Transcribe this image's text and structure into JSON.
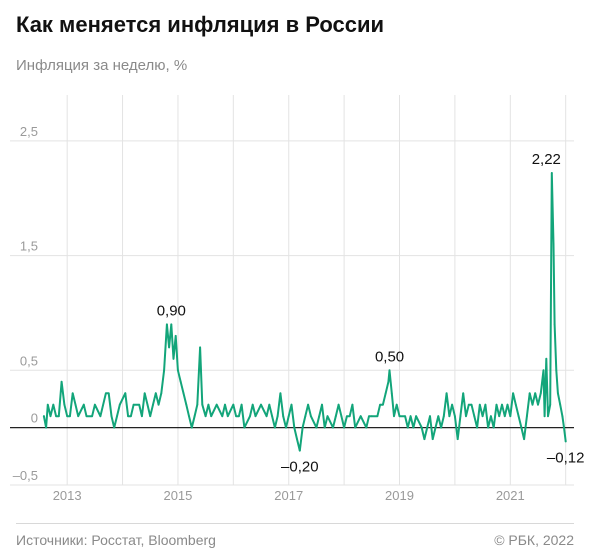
{
  "header": {
    "title": "Как меняется инфляция в России",
    "subtitle": "Инфляция за неделю, %"
  },
  "footer": {
    "source": "Источники: Росстат, Bloomberg",
    "copyright": "© РБК, 2022"
  },
  "colors": {
    "line": "#13a57a",
    "grid": "#e3e3e3",
    "axis": "#222222",
    "tick_text": "#9a9a9a"
  },
  "chart_data": {
    "type": "line",
    "title": "Как меняется инфляция в России",
    "ylabel": "Инфляция за неделю, %",
    "xlim": [
      2012.6,
      2022.15
    ],
    "ylim": [
      -0.5,
      2.9
    ],
    "y_ticks": [
      {
        "value": -0.5,
        "label": "–0,5"
      },
      {
        "value": 0,
        "label": "0"
      },
      {
        "value": 0.5,
        "label": "0,5"
      },
      {
        "value": 1.5,
        "label": "1,5"
      },
      {
        "value": 2.5,
        "label": "2,5"
      }
    ],
    "x_ticks": [
      {
        "value": 2013,
        "label": "2013"
      },
      {
        "value": 2015,
        "label": "2015"
      },
      {
        "value": 2017,
        "label": "2017"
      },
      {
        "value": 2019,
        "label": "2019"
      },
      {
        "value": 2021,
        "label": "2021"
      }
    ],
    "grid_years": [
      2014,
      2016,
      2018,
      2020,
      2022
    ],
    "annotations": [
      {
        "x": 2014.88,
        "y": 0.9,
        "label": "0,90",
        "position": "above"
      },
      {
        "x": 2017.2,
        "y": -0.2,
        "label": "–0,20",
        "position": "below"
      },
      {
        "x": 2018.82,
        "y": 0.5,
        "label": "0,50",
        "position": "above"
      },
      {
        "x": 2021.65,
        "y": 2.22,
        "label": "2,22",
        "position": "above"
      },
      {
        "x": 2022.0,
        "y": -0.12,
        "label": "–0,12",
        "position": "below"
      }
    ],
    "series": [
      {
        "values": [
          [
            2012.58,
            0.1
          ],
          [
            2012.62,
            0.0
          ],
          [
            2012.65,
            0.2
          ],
          [
            2012.7,
            0.1
          ],
          [
            2012.75,
            0.2
          ],
          [
            2012.8,
            0.1
          ],
          [
            2012.85,
            0.1
          ],
          [
            2012.9,
            0.4
          ],
          [
            2012.95,
            0.2
          ],
          [
            2013.0,
            0.1
          ],
          [
            2013.05,
            0.1
          ],
          [
            2013.1,
            0.3
          ],
          [
            2013.15,
            0.2
          ],
          [
            2013.2,
            0.1
          ],
          [
            2013.3,
            0.2
          ],
          [
            2013.35,
            0.1
          ],
          [
            2013.45,
            0.1
          ],
          [
            2013.5,
            0.2
          ],
          [
            2013.6,
            0.1
          ],
          [
            2013.7,
            0.3
          ],
          [
            2013.75,
            0.3
          ],
          [
            2013.8,
            0.1
          ],
          [
            2013.85,
            0.0
          ],
          [
            2013.9,
            0.1
          ],
          [
            2013.95,
            0.2
          ],
          [
            2014.05,
            0.3
          ],
          [
            2014.1,
            0.1
          ],
          [
            2014.15,
            0.1
          ],
          [
            2014.2,
            0.2
          ],
          [
            2014.3,
            0.2
          ],
          [
            2014.35,
            0.1
          ],
          [
            2014.4,
            0.3
          ],
          [
            2014.45,
            0.2
          ],
          [
            2014.5,
            0.1
          ],
          [
            2014.55,
            0.2
          ],
          [
            2014.6,
            0.3
          ],
          [
            2014.65,
            0.2
          ],
          [
            2014.7,
            0.3
          ],
          [
            2014.75,
            0.5
          ],
          [
            2014.8,
            0.9
          ],
          [
            2014.84,
            0.7
          ],
          [
            2014.88,
            0.9
          ],
          [
            2014.92,
            0.6
          ],
          [
            2014.96,
            0.8
          ],
          [
            2015.0,
            0.5
          ],
          [
            2015.05,
            0.4
          ],
          [
            2015.1,
            0.3
          ],
          [
            2015.15,
            0.2
          ],
          [
            2015.2,
            0.1
          ],
          [
            2015.25,
            0.0
          ],
          [
            2015.3,
            0.1
          ],
          [
            2015.35,
            0.2
          ],
          [
            2015.4,
            0.7
          ],
          [
            2015.44,
            0.2
          ],
          [
            2015.5,
            0.1
          ],
          [
            2015.55,
            0.2
          ],
          [
            2015.6,
            0.1
          ],
          [
            2015.7,
            0.2
          ],
          [
            2015.8,
            0.1
          ],
          [
            2015.85,
            0.2
          ],
          [
            2015.9,
            0.1
          ],
          [
            2016.0,
            0.2
          ],
          [
            2016.05,
            0.1
          ],
          [
            2016.1,
            0.1
          ],
          [
            2016.15,
            0.2
          ],
          [
            2016.2,
            0.0
          ],
          [
            2016.3,
            0.1
          ],
          [
            2016.35,
            0.2
          ],
          [
            2016.4,
            0.1
          ],
          [
            2016.5,
            0.2
          ],
          [
            2016.6,
            0.1
          ],
          [
            2016.65,
            0.2
          ],
          [
            2016.7,
            0.1
          ],
          [
            2016.75,
            0.0
          ],
          [
            2016.8,
            0.1
          ],
          [
            2016.85,
            0.3
          ],
          [
            2016.9,
            0.1
          ],
          [
            2016.95,
            0.0
          ],
          [
            2017.0,
            0.1
          ],
          [
            2017.05,
            0.2
          ],
          [
            2017.1,
            0.0
          ],
          [
            2017.15,
            -0.1
          ],
          [
            2017.2,
            -0.2
          ],
          [
            2017.25,
            0.0
          ],
          [
            2017.3,
            0.1
          ],
          [
            2017.35,
            0.2
          ],
          [
            2017.4,
            0.1
          ],
          [
            2017.5,
            0.0
          ],
          [
            2017.55,
            0.1
          ],
          [
            2017.6,
            0.2
          ],
          [
            2017.65,
            0.0
          ],
          [
            2017.7,
            0.1
          ],
          [
            2017.8,
            0.0
          ],
          [
            2017.85,
            0.1
          ],
          [
            2017.9,
            0.2
          ],
          [
            2017.95,
            0.1
          ],
          [
            2018.0,
            0.0
          ],
          [
            2018.05,
            0.1
          ],
          [
            2018.1,
            0.1
          ],
          [
            2018.15,
            0.2
          ],
          [
            2018.2,
            0.0
          ],
          [
            2018.3,
            0.1
          ],
          [
            2018.4,
            0.0
          ],
          [
            2018.45,
            0.1
          ],
          [
            2018.5,
            0.1
          ],
          [
            2018.6,
            0.1
          ],
          [
            2018.65,
            0.2
          ],
          [
            2018.7,
            0.2
          ],
          [
            2018.75,
            0.3
          ],
          [
            2018.8,
            0.4
          ],
          [
            2018.82,
            0.5
          ],
          [
            2018.86,
            0.3
          ],
          [
            2018.9,
            0.1
          ],
          [
            2018.95,
            0.2
          ],
          [
            2019.0,
            0.1
          ],
          [
            2019.1,
            0.1
          ],
          [
            2019.15,
            0.0
          ],
          [
            2019.2,
            0.1
          ],
          [
            2019.25,
            0.0
          ],
          [
            2019.3,
            0.1
          ],
          [
            2019.4,
            0.0
          ],
          [
            2019.45,
            -0.1
          ],
          [
            2019.5,
            0.0
          ],
          [
            2019.55,
            0.1
          ],
          [
            2019.6,
            -0.1
          ],
          [
            2019.65,
            0.0
          ],
          [
            2019.7,
            0.1
          ],
          [
            2019.75,
            0.0
          ],
          [
            2019.8,
            0.1
          ],
          [
            2019.85,
            0.3
          ],
          [
            2019.9,
            0.1
          ],
          [
            2019.95,
            0.2
          ],
          [
            2020.0,
            0.1
          ],
          [
            2020.05,
            -0.1
          ],
          [
            2020.1,
            0.1
          ],
          [
            2020.15,
            0.3
          ],
          [
            2020.2,
            0.1
          ],
          [
            2020.25,
            0.2
          ],
          [
            2020.3,
            0.2
          ],
          [
            2020.35,
            0.1
          ],
          [
            2020.4,
            0.0
          ],
          [
            2020.45,
            0.2
          ],
          [
            2020.5,
            0.1
          ],
          [
            2020.55,
            0.2
          ],
          [
            2020.6,
            0.0
          ],
          [
            2020.65,
            0.1
          ],
          [
            2020.7,
            0.0
          ],
          [
            2020.75,
            0.2
          ],
          [
            2020.8,
            0.1
          ],
          [
            2020.85,
            0.2
          ],
          [
            2020.9,
            0.1
          ],
          [
            2020.95,
            0.2
          ],
          [
            2021.0,
            0.1
          ],
          [
            2021.05,
            0.3
          ],
          [
            2021.1,
            0.2
          ],
          [
            2021.15,
            0.1
          ],
          [
            2021.2,
            0.0
          ],
          [
            2021.25,
            -0.1
          ],
          [
            2021.3,
            0.1
          ],
          [
            2021.35,
            0.3
          ],
          [
            2021.4,
            0.2
          ],
          [
            2021.45,
            0.3
          ],
          [
            2021.5,
            0.2
          ],
          [
            2021.55,
            0.3
          ],
          [
            2021.6,
            0.5
          ],
          [
            2021.62,
            0.1
          ],
          [
            2021.65,
            0.6
          ],
          [
            2021.68,
            0.1
          ],
          [
            2021.72,
            0.2
          ],
          [
            2021.75,
            2.22
          ],
          [
            2021.78,
            1.6
          ],
          [
            2021.8,
            0.9
          ],
          [
            2021.83,
            0.5
          ],
          [
            2021.86,
            0.3
          ],
          [
            2021.9,
            0.2
          ],
          [
            2021.94,
            0.1
          ],
          [
            2021.97,
            0.0
          ],
          [
            2022.0,
            -0.12
          ]
        ]
      }
    ]
  }
}
